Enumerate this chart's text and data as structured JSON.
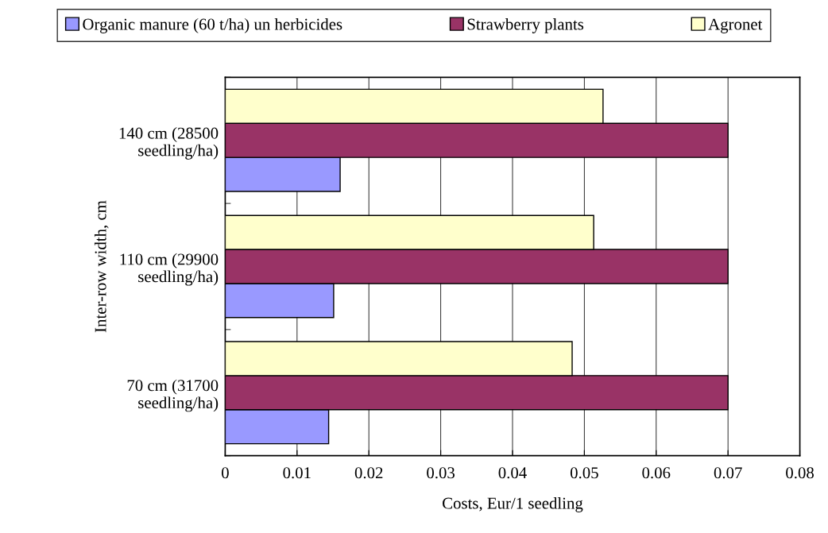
{
  "chart_data": {
    "type": "bar",
    "orientation": "horizontal",
    "xlabel": "Costs, Eur/1 seedling",
    "ylabel": "Inter-row width, cm",
    "categories": [
      "140 cm (28500\nseedling/ha)",
      "110 cm (29900\nseedling/ha)",
      "70 cm (31700\nseedling/ha)"
    ],
    "series": [
      {
        "name": "Organic manure (60 t/ha) un herbicides",
        "color": "#9999ff",
        "values": [
          0.016,
          0.0151,
          0.0144
        ]
      },
      {
        "name": "Strawberry plants",
        "color": "#993366",
        "values": [
          0.07,
          0.07,
          0.07
        ]
      },
      {
        "name": "Agronet",
        "color": "#ffffcc",
        "values": [
          0.0526,
          0.0513,
          0.0483
        ]
      }
    ],
    "xlim": [
      0,
      0.08
    ],
    "xticks": [
      0,
      0.01,
      0.02,
      0.03,
      0.04,
      0.05,
      0.06,
      0.07,
      0.08
    ],
    "grid": "x",
    "legend": "top"
  }
}
